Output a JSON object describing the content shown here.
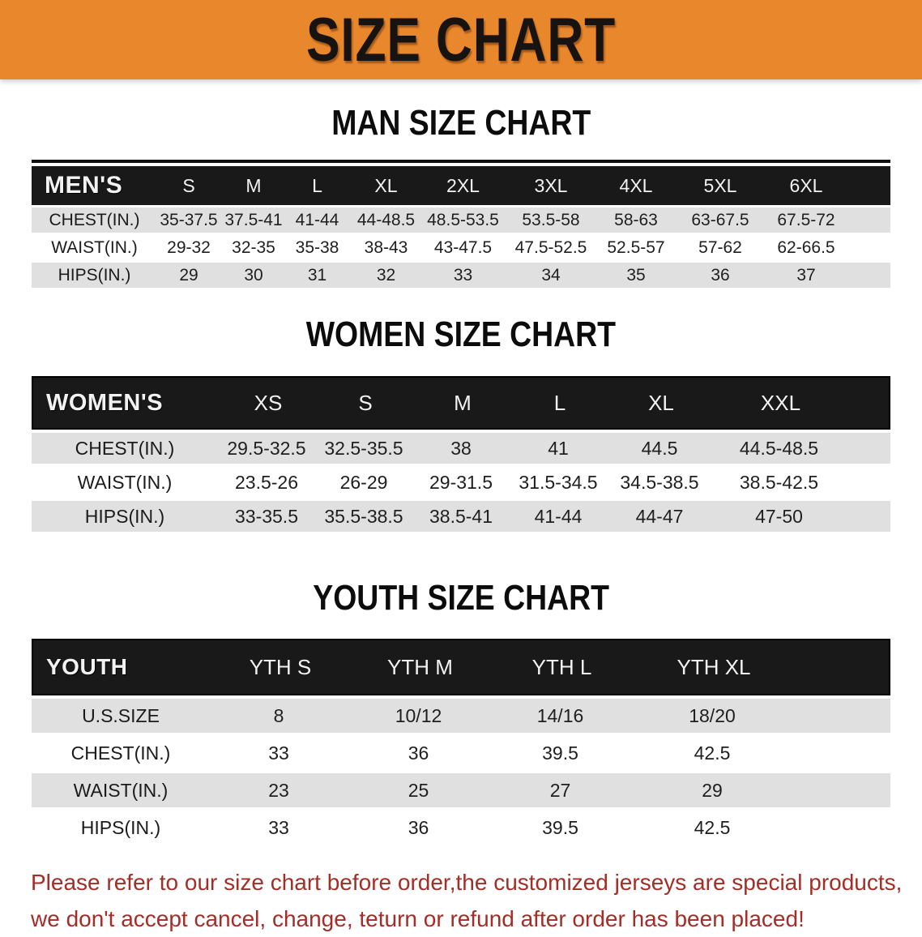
{
  "banner": {
    "title": "SIZE CHART"
  },
  "palette": {
    "banner_orange": "#e8872b",
    "header_black": "#191919",
    "row_gray": "#e0e0e0",
    "disclaimer_red": "#a32e28"
  },
  "sections": {
    "men": {
      "heading": "MAN SIZE CHART",
      "corner": "MEN'S",
      "sizes": [
        "S",
        "M",
        "L",
        "XL",
        "2XL",
        "3XL",
        "4XL",
        "5XL",
        "6XL"
      ],
      "rows": [
        {
          "label": "CHEST(IN.)",
          "values": [
            "35-37.5",
            "37.5-41",
            "41-44",
            "44-48.5",
            "48.5-53.5",
            "53.5-58",
            "58-63",
            "63-67.5",
            "67.5-72"
          ]
        },
        {
          "label": "WAIST(IN.)",
          "values": [
            "29-32",
            "32-35",
            "35-38",
            "38-43",
            "43-47.5",
            "47.5-52.5",
            "52.5-57",
            "57-62",
            "62-66.5"
          ]
        },
        {
          "label": "HIPS(IN.)",
          "values": [
            "29",
            "30",
            "31",
            "32",
            "33",
            "34",
            "35",
            "36",
            "37"
          ]
        }
      ]
    },
    "women": {
      "heading": "WOMEN SIZE CHART",
      "corner": "WOMEN'S",
      "sizes": [
        "XS",
        "S",
        "M",
        "L",
        "XL",
        "XXL"
      ],
      "rows": [
        {
          "label": "CHEST(IN.)",
          "values": [
            "29.5-32.5",
            "32.5-35.5",
            "38",
            "41",
            "44.5",
            "44.5-48.5"
          ]
        },
        {
          "label": "WAIST(IN.)",
          "values": [
            "23.5-26",
            "26-29",
            "29-31.5",
            "31.5-34.5",
            "34.5-38.5",
            "38.5-42.5"
          ]
        },
        {
          "label": "HIPS(IN.)",
          "values": [
            "33-35.5",
            "35.5-38.5",
            "38.5-41",
            "41-44",
            "44-47",
            "47-50"
          ]
        }
      ]
    },
    "youth": {
      "heading": "YOUTH SIZE CHART",
      "corner": "YOUTH",
      "sizes": [
        "YTH S",
        "YTH M",
        "YTH L",
        "YTH XL"
      ],
      "rows": [
        {
          "label": "U.S.SIZE",
          "values": [
            "8",
            "10/12",
            "14/16",
            "18/20"
          ]
        },
        {
          "label": "CHEST(IN.)",
          "values": [
            "33",
            "36",
            "39.5",
            "42.5"
          ]
        },
        {
          "label": "WAIST(IN.)",
          "values": [
            "23",
            "25",
            "27",
            "29"
          ]
        },
        {
          "label": "HIPS(IN.)",
          "values": [
            "33",
            "36",
            "39.5",
            "42.5"
          ]
        }
      ]
    }
  },
  "footer": {
    "line1": "Please refer to our size chart before order,the customized jerseys are special products,",
    "line2": "we don't accept cancel, change, teturn or refund after order has been placed!"
  }
}
